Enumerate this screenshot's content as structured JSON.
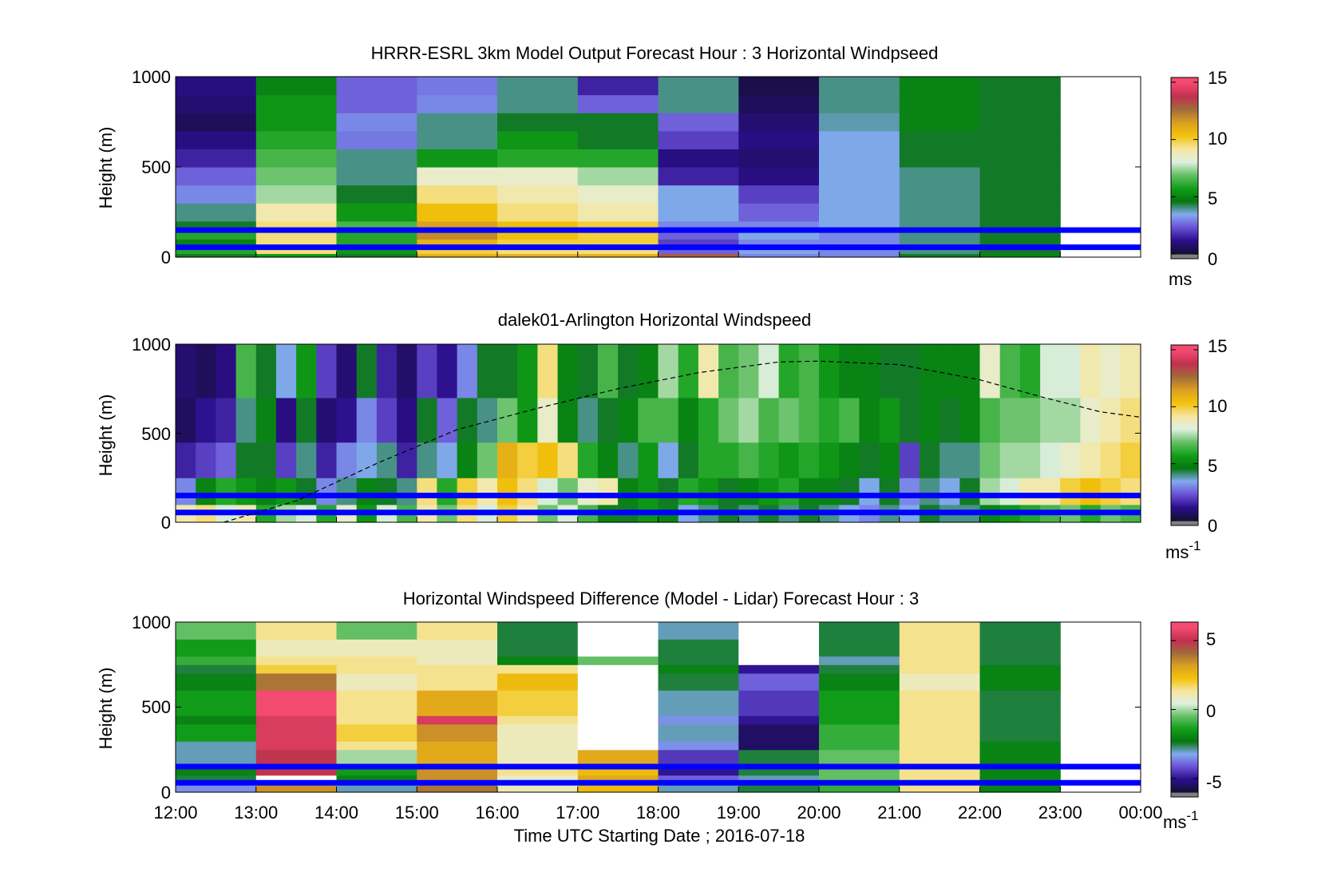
{
  "chart_data": [
    {
      "type": "heatmap",
      "title": "HRRR-ESRL 3km Model Output   Forecast Hour : 3 Horizontal Windpseed",
      "ylabel": "Height (m)",
      "ylim": [
        0,
        1000
      ],
      "yticks": [
        "0",
        "500",
        "1000"
      ],
      "xlim": [
        12,
        24
      ],
      "colorbar": {
        "ticks": [
          "0",
          "5",
          "10",
          "15"
        ],
        "tick_values": [
          0,
          5,
          10,
          15
        ],
        "range": [
          0,
          15
        ],
        "unit": "ms"
      },
      "reference_lines_m": [
        150,
        55
      ],
      "reference_line_color": "#0000ff",
      "x": [
        12,
        13,
        14,
        15,
        16,
        17,
        18,
        19,
        20,
        21,
        22
      ],
      "bin_hours": 1,
      "height_bands": [
        {
          "bottom": 0,
          "top": 20
        },
        {
          "bottom": 20,
          "top": 50
        },
        {
          "bottom": 50,
          "top": 100
        },
        {
          "bottom": 100,
          "top": 150
        },
        {
          "bottom": 150,
          "top": 200
        },
        {
          "bottom": 200,
          "top": 300
        },
        {
          "bottom": 300,
          "top": 400
        },
        {
          "bottom": 400,
          "top": 500
        },
        {
          "bottom": 500,
          "top": 600
        },
        {
          "bottom": 600,
          "top": 700
        },
        {
          "bottom": 700,
          "top": 800
        },
        {
          "bottom": 800,
          "top": 900
        },
        {
          "bottom": 900,
          "top": 1000
        }
      ],
      "values": [
        [
          4.5,
          5.5,
          4.5,
          11.0,
          11.0,
          11.0,
          13.0,
          3.0,
          3.0,
          4.5,
          5.0
        ],
        [
          6.0,
          9.5,
          5.5,
          10.0,
          9.5,
          9.5,
          2.5,
          3.5,
          3.0,
          4.0,
          4.5
        ],
        [
          5.0,
          9.5,
          6.0,
          11.0,
          10.0,
          10.0,
          2.0,
          3.0,
          3.0,
          4.0,
          4.5
        ],
        [
          6.0,
          9.5,
          6.0,
          12.0,
          10.5,
          10.0,
          2.5,
          3.5,
          3.0,
          4.0,
          4.5
        ],
        [
          4.5,
          9.5,
          6.5,
          11.5,
          10.5,
          10.0,
          3.0,
          3.0,
          3.5,
          4.0,
          4.5
        ],
        [
          4.0,
          9.0,
          5.5,
          10.5,
          9.5,
          9.0,
          3.5,
          2.5,
          3.5,
          4.0,
          4.5
        ],
        [
          3.0,
          7.5,
          4.5,
          9.5,
          9.0,
          8.5,
          3.5,
          2.0,
          3.5,
          4.0,
          4.5
        ],
        [
          2.5,
          7.0,
          4.0,
          8.5,
          8.5,
          7.5,
          1.5,
          1.0,
          3.5,
          4.0,
          4.5
        ],
        [
          1.5,
          6.5,
          4.0,
          5.5,
          6.0,
          6.0,
          1.0,
          0.8,
          3.5,
          4.5,
          4.5
        ],
        [
          1.0,
          6.0,
          2.8,
          4.0,
          5.5,
          4.5,
          2.0,
          1.0,
          3.5,
          4.5,
          4.5
        ],
        [
          0.5,
          5.5,
          3.0,
          4.0,
          4.5,
          4.5,
          2.5,
          0.8,
          3.8,
          5.0,
          4.5
        ],
        [
          0.8,
          5.5,
          2.5,
          3.0,
          4.0,
          2.5,
          4.0,
          0.5,
          4.0,
          5.0,
          4.5
        ],
        [
          1.0,
          5.0,
          2.5,
          2.8,
          4.0,
          1.5,
          4.0,
          0.3,
          4.0,
          5.0,
          4.5
        ]
      ]
    },
    {
      "type": "heatmap",
      "title": "dalek01-Arlington  Horizontal Windspeed",
      "ylabel": "Height (m)",
      "ylim": [
        0,
        1000
      ],
      "yticks": [
        "0",
        "500",
        "1000"
      ],
      "xlim": [
        12,
        24
      ],
      "colorbar": {
        "ticks": [
          "0",
          "5",
          "10",
          "15"
        ],
        "tick_values": [
          0,
          5,
          10,
          15
        ],
        "range": [
          0,
          15
        ],
        "unit": "ms",
        "unit_exponent": "-1"
      },
      "reference_lines_m": [
        150,
        55
      ],
      "reference_line_color": "#0000ff",
      "bin_hours": 0.25,
      "x": [
        12.0,
        12.25,
        12.5,
        12.75,
        13.0,
        13.25,
        13.5,
        13.75,
        14.0,
        14.25,
        14.5,
        14.75,
        15.0,
        15.25,
        15.5,
        15.75,
        16.0,
        16.25,
        16.5,
        16.75,
        17.0,
        17.25,
        17.5,
        17.75,
        18.0,
        18.25,
        18.5,
        18.75,
        19.0,
        19.25,
        19.5,
        19.75,
        20.0,
        20.25,
        20.5,
        20.75,
        21.0,
        21.25,
        21.5,
        21.75,
        22.0,
        22.25,
        22.5,
        22.75,
        23.0,
        23.25,
        23.5,
        23.75
      ],
      "layer_bottoms_m": [
        0,
        100,
        250,
        450,
        700
      ],
      "layer_tops_m": [
        100,
        250,
        450,
        700,
        1000
      ],
      "values": [
        [
          9.0,
          3.0,
          1.5,
          0.6,
          0.8
        ],
        [
          9.5,
          5.0,
          2.0,
          1.2,
          0.5
        ],
        [
          8.0,
          6.0,
          2.5,
          1.5,
          1.0
        ],
        [
          9.0,
          5.5,
          4.5,
          4.0,
          6.5
        ],
        [
          6.0,
          5.0,
          4.5,
          5.0,
          4.5
        ],
        [
          7.5,
          5.5,
          2.0,
          1.0,
          3.5
        ],
        [
          8.0,
          4.5,
          4.0,
          4.5,
          5.5
        ],
        [
          6.0,
          3.0,
          1.5,
          0.8,
          2.0
        ],
        [
          8.5,
          4.0,
          3.0,
          1.2,
          0.8
        ],
        [
          5.5,
          5.0,
          3.5,
          3.0,
          4.5
        ],
        [
          8.0,
          4.5,
          4.0,
          2.0,
          1.5
        ],
        [
          6.5,
          4.0,
          1.5,
          1.0,
          0.7
        ],
        [
          9.0,
          9.5,
          4.0,
          4.5,
          2.0
        ],
        [
          7.0,
          6.0,
          3.5,
          2.5,
          1.2
        ],
        [
          9.5,
          10.0,
          5.0,
          4.5,
          3.0
        ],
        [
          8.0,
          9.0,
          7.0,
          4.0,
          4.5
        ],
        [
          10.0,
          10.5,
          11.0,
          7.0,
          4.5
        ],
        [
          9.0,
          9.5,
          10.0,
          5.5,
          5.5
        ],
        [
          7.0,
          8.0,
          10.5,
          8.5,
          9.5
        ],
        [
          8.0,
          7.0,
          9.5,
          5.0,
          5.0
        ],
        [
          6.5,
          8.5,
          6.0,
          4.0,
          4.5
        ],
        [
          5.0,
          9.0,
          5.0,
          4.5,
          6.5
        ],
        [
          4.5,
          5.0,
          4.0,
          5.0,
          4.5
        ],
        [
          5.5,
          5.5,
          5.5,
          6.5,
          5.0
        ],
        [
          5.0,
          4.5,
          3.5,
          6.5,
          7.5
        ],
        [
          3.5,
          6.0,
          4.5,
          5.0,
          6.0
        ],
        [
          4.0,
          5.5,
          6.0,
          6.0,
          9.0
        ],
        [
          4.5,
          4.5,
          6.0,
          7.0,
          6.5
        ],
        [
          4.0,
          5.0,
          6.5,
          7.5,
          7.0
        ],
        [
          4.5,
          5.5,
          6.0,
          6.5,
          8.0
        ],
        [
          4.0,
          6.0,
          5.5,
          7.0,
          6.0
        ],
        [
          4.5,
          5.0,
          6.0,
          6.5,
          6.5
        ],
        [
          4.0,
          5.0,
          5.5,
          6.0,
          5.5
        ],
        [
          3.5,
          4.5,
          5.0,
          6.5,
          5.0
        ],
        [
          3.0,
          3.5,
          4.5,
          5.0,
          5.0
        ],
        [
          4.0,
          4.5,
          5.0,
          5.5,
          4.5
        ],
        [
          3.5,
          3.0,
          2.0,
          4.5,
          4.5
        ],
        [
          4.5,
          4.0,
          4.5,
          5.0,
          5.0
        ],
        [
          4.0,
          3.5,
          4.0,
          4.5,
          5.0
        ],
        [
          4.0,
          4.5,
          4.0,
          5.0,
          5.0
        ],
        [
          5.0,
          7.5,
          7.0,
          6.5,
          8.5
        ],
        [
          5.5,
          8.0,
          7.5,
          7.0,
          6.5
        ],
        [
          6.0,
          9.0,
          7.5,
          7.0,
          6.0
        ],
        [
          6.5,
          9.0,
          8.0,
          7.5,
          8.0
        ],
        [
          7.0,
          10.0,
          8.5,
          7.5,
          8.0
        ],
        [
          6.0,
          10.5,
          9.0,
          8.5,
          9.0
        ],
        [
          7.0,
          10.0,
          9.5,
          9.0,
          8.5
        ],
        [
          6.5,
          9.5,
          10.0,
          9.5,
          9.0
        ]
      ],
      "dashed_curve": {
        "x": [
          12.6,
          13.5,
          14.5,
          15.5,
          16.5,
          17.5,
          18.5,
          19.5,
          20.0,
          21.0,
          22.0,
          22.8,
          23.5,
          24.0
        ],
        "y": [
          0,
          120,
          330,
          520,
          640,
          750,
          840,
          900,
          905,
          885,
          800,
          700,
          620,
          590
        ]
      }
    },
    {
      "type": "heatmap",
      "title": "Horizontal Windspeed Difference (Model - Lidar) Forecast Hour : 3",
      "xlabel": "Time UTC  Starting Date ; 2016-07-18",
      "ylabel": "Height (m)",
      "ylim": [
        0,
        1000
      ],
      "yticks": [
        "0",
        "500",
        "1000"
      ],
      "xlim": [
        12,
        24
      ],
      "xticks": [
        "12:00",
        "13:00",
        "14:00",
        "15:00",
        "16:00",
        "17:00",
        "18:00",
        "19:00",
        "20:00",
        "21:00",
        "22:00",
        "23:00",
        "00:00"
      ],
      "colorbar": {
        "ticks": [
          "-5",
          "0",
          "5"
        ],
        "tick_values": [
          -5,
          0,
          5
        ],
        "range": [
          -6,
          6
        ],
        "unit": "ms",
        "unit_exponent": "-1"
      },
      "reference_lines_m": [
        150,
        55
      ],
      "reference_line_color": "#0000ff",
      "x": [
        12,
        13,
        14,
        15,
        16,
        17,
        18,
        19,
        20,
        21,
        22
      ],
      "bin_hours": 1,
      "height_bands": [
        {
          "bottom": 0,
          "top": 50
        },
        {
          "bottom": 50,
          "top": 100
        },
        {
          "bottom": 100,
          "top": 150
        },
        {
          "bottom": 150,
          "top": 250
        },
        {
          "bottom": 250,
          "top": 300
        },
        {
          "bottom": 300,
          "top": 400
        },
        {
          "bottom": 400,
          "top": 450
        },
        {
          "bottom": 450,
          "top": 600
        },
        {
          "bottom": 600,
          "top": 700
        },
        {
          "bottom": 700,
          "top": 750
        },
        {
          "bottom": 750,
          "top": 800
        },
        {
          "bottom": 800,
          "top": 900
        },
        {
          "bottom": 900,
          "top": 1000
        }
      ],
      "values": [
        [
          -3.5,
          3.5,
          -3.0,
          4.0,
          1.0,
          2.5,
          -3.0,
          -2.5,
          -1.0,
          1.5,
          -2.0
        ],
        [
          -2.5,
          null,
          -2.0,
          3.5,
          0.8,
          3.0,
          -4.0,
          -3.0,
          -0.5,
          1.5,
          -2.0
        ],
        [
          -2.0,
          5.0,
          -1.5,
          3.5,
          1.5,
          2.5,
          -5.0,
          -2.5,
          -0.5,
          1.5,
          -2.0
        ],
        [
          -3.0,
          5.0,
          0.0,
          3.0,
          1.0,
          3.0,
          -4.5,
          -2.5,
          -0.5,
          1.5,
          -2.0
        ],
        [
          -3.0,
          5.5,
          1.5,
          3.0,
          1.0,
          null,
          -3.5,
          -5.5,
          -1.0,
          1.5,
          -2.0
        ],
        [
          -1.5,
          5.5,
          2.0,
          3.5,
          1.0,
          null,
          -3.0,
          -5.5,
          -1.0,
          1.5,
          -2.5
        ],
        [
          -2.0,
          5.5,
          1.5,
          5.5,
          1.5,
          null,
          -3.5,
          -5.0,
          -1.5,
          1.5,
          -2.5
        ],
        [
          -1.5,
          6.0,
          1.5,
          3.0,
          2.0,
          null,
          -3.0,
          -4.5,
          -1.5,
          1.5,
          -2.5
        ],
        [
          -2.0,
          4.0,
          1.0,
          1.5,
          2.5,
          null,
          -2.5,
          -4.0,
          -2.0,
          1.0,
          -2.0
        ],
        [
          -2.5,
          2.0,
          1.5,
          1.5,
          1.5,
          null,
          -2.0,
          -5.0,
          -2.5,
          1.5,
          -2.0
        ],
        [
          -1.0,
          1.5,
          1.5,
          1.0,
          -2.0,
          -0.5,
          -2.5,
          null,
          -3.0,
          1.5,
          -2.5
        ],
        [
          -1.5,
          1.0,
          1.0,
          1.0,
          -2.5,
          null,
          -2.5,
          null,
          -2.5,
          1.5,
          -2.5
        ],
        [
          -0.5,
          1.5,
          -0.5,
          1.5,
          -2.5,
          null,
          -3.0,
          null,
          -2.5,
          1.5,
          -2.5
        ]
      ]
    }
  ],
  "colors": {
    "reference_lines": "#0000ff",
    "missing_data_white": "#ffffff",
    "colorbar_extremes_gray": "#808080",
    "colormap": [
      "#151033",
      "#2b0e8c",
      "#6a52d6",
      "#83aaf0",
      "#05750f",
      "#12a01a",
      "#66c066",
      "#e0f0e0",
      "#f5e6a0",
      "#f2c20c",
      "#dca020",
      "#a06c3a",
      "#c23050",
      "#f24a70",
      "#c8c8c8"
    ]
  }
}
